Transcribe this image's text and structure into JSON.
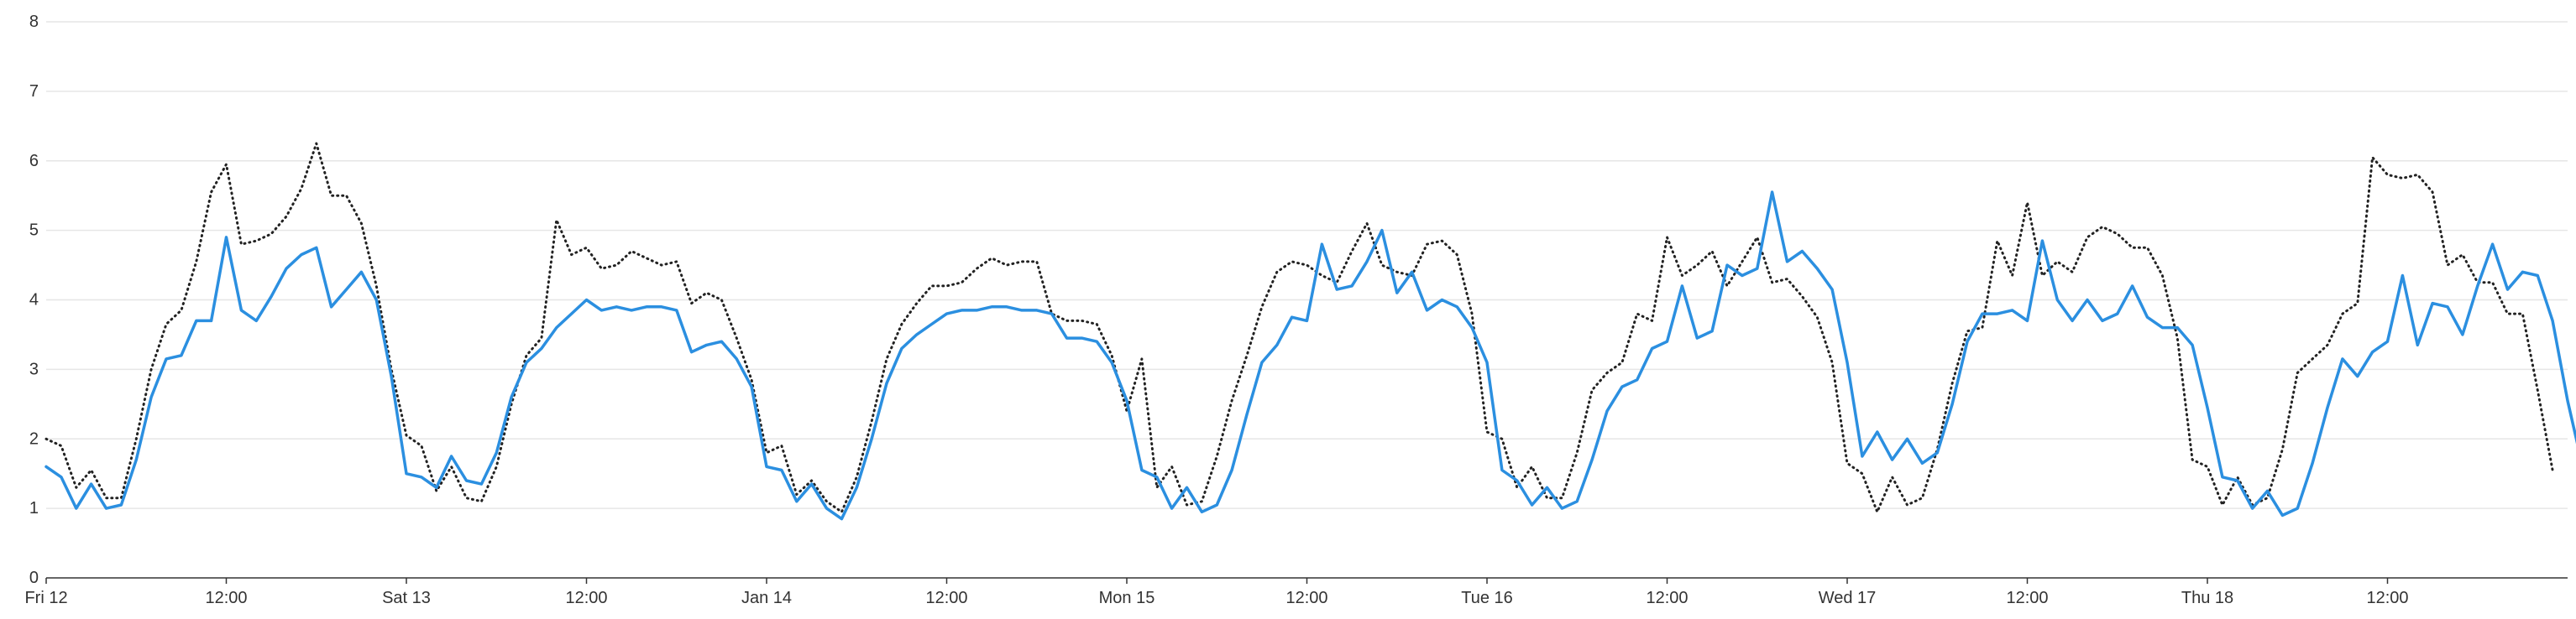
{
  "chart_data": {
    "type": "line",
    "title": "",
    "xlabel": "",
    "ylabel": "",
    "ylim": [
      0,
      8
    ],
    "y_ticks": [
      "0",
      "1",
      "2",
      "3",
      "4",
      "5",
      "6",
      "7",
      "8"
    ],
    "x_ticks": [
      "Fri 12",
      "12:00",
      "Sat 13",
      "12:00",
      "Jan 14",
      "12:00",
      "Mon 15",
      "12:00",
      "Tue 16",
      "12:00",
      "Wed 17",
      "12:00",
      "Thu 18",
      "12:00"
    ],
    "x_range_hours": [
      0,
      168
    ],
    "x_step_hours": 1,
    "grid": "horizontal",
    "legend": "none",
    "series": [
      {
        "style": "solid",
        "color": "#2b8fe0",
        "values": [
          1.6,
          1.45,
          1.0,
          1.35,
          1.0,
          1.05,
          1.7,
          2.6,
          3.15,
          3.2,
          3.7,
          3.7,
          4.9,
          3.85,
          3.7,
          4.05,
          4.45,
          4.65,
          4.75,
          3.9,
          4.15,
          4.4,
          4.0,
          2.9,
          1.5,
          1.45,
          1.3,
          1.75,
          1.4,
          1.35,
          1.8,
          2.6,
          3.1,
          3.3,
          3.6,
          3.8,
          4.0,
          3.85,
          3.9,
          3.85,
          3.9,
          3.9,
          3.85,
          3.25,
          3.35,
          3.4,
          3.15,
          2.75,
          1.6,
          1.55,
          1.1,
          1.35,
          1.0,
          0.85,
          1.3,
          2.0,
          2.8,
          3.3,
          3.5,
          3.65,
          3.8,
          3.85,
          3.85,
          3.9,
          3.9,
          3.85,
          3.85,
          3.8,
          3.45,
          3.45,
          3.4,
          3.1,
          2.55,
          1.55,
          1.45,
          1.0,
          1.3,
          0.95,
          1.05,
          1.55,
          2.35,
          3.1,
          3.35,
          3.75,
          3.7,
          4.8,
          4.15,
          4.2,
          4.55,
          5.0,
          4.1,
          4.4,
          3.85,
          4.0,
          3.9,
          3.6,
          3.1,
          1.55,
          1.4,
          1.05,
          1.3,
          1.0,
          1.1,
          1.7,
          2.4,
          2.75,
          2.85,
          3.3,
          3.4,
          4.2,
          3.45,
          3.55,
          4.5,
          4.35,
          4.45,
          5.55,
          4.55,
          4.7,
          4.45,
          4.15,
          3.1,
          1.75,
          2.1,
          1.7,
          2.0,
          1.65,
          1.8,
          2.5,
          3.4,
          3.8,
          3.8,
          3.85,
          3.7,
          4.85,
          4.0,
          3.7,
          4.0,
          3.7,
          3.8,
          4.2,
          3.75,
          3.6,
          3.6,
          3.35,
          2.45,
          1.45,
          1.4,
          1.0,
          1.25,
          0.9,
          1.0,
          1.65,
          2.45,
          3.15,
          2.9,
          3.25,
          3.4,
          4.35,
          3.35,
          3.95,
          3.9,
          3.5,
          4.2,
          4.8,
          4.15,
          4.4,
          4.35,
          3.7,
          2.55,
          1.6
        ]
      },
      {
        "style": "dotted",
        "color": "#222222",
        "values": [
          2.0,
          1.9,
          1.3,
          1.55,
          1.15,
          1.15,
          2.0,
          3.0,
          3.65,
          3.85,
          4.55,
          5.55,
          5.95,
          4.8,
          4.85,
          4.95,
          5.2,
          5.6,
          6.25,
          5.5,
          5.5,
          5.1,
          4.2,
          3.0,
          2.05,
          1.9,
          1.25,
          1.6,
          1.15,
          1.1,
          1.6,
          2.5,
          3.2,
          3.45,
          5.15,
          4.65,
          4.75,
          4.45,
          4.5,
          4.7,
          4.6,
          4.5,
          4.55,
          3.95,
          4.1,
          4.0,
          3.45,
          2.85,
          1.8,
          1.9,
          1.2,
          1.4,
          1.1,
          0.95,
          1.45,
          2.25,
          3.15,
          3.65,
          3.95,
          4.2,
          4.2,
          4.25,
          4.45,
          4.6,
          4.5,
          4.55,
          4.55,
          3.8,
          3.7,
          3.7,
          3.65,
          3.2,
          2.4,
          3.15,
          1.3,
          1.6,
          1.05,
          1.1,
          1.75,
          2.55,
          3.2,
          3.9,
          4.4,
          4.55,
          4.5,
          4.35,
          4.25,
          4.7,
          5.1,
          4.5,
          4.4,
          4.35,
          4.8,
          4.85,
          4.65,
          3.8,
          2.1,
          2.0,
          1.3,
          1.6,
          1.15,
          1.15,
          1.8,
          2.7,
          2.95,
          3.1,
          3.8,
          3.7,
          4.9,
          4.35,
          4.5,
          4.7,
          4.2,
          4.55,
          4.9,
          4.25,
          4.3,
          4.05,
          3.75,
          3.1,
          1.65,
          1.5,
          0.95,
          1.45,
          1.05,
          1.15,
          1.85,
          2.8,
          3.55,
          3.6,
          4.85,
          4.35,
          5.4,
          4.35,
          4.55,
          4.4,
          4.9,
          5.05,
          4.95,
          4.75,
          4.75,
          4.35,
          3.45,
          1.7,
          1.6,
          1.05,
          1.45,
          1.05,
          1.15,
          1.85,
          2.95,
          3.15,
          3.35,
          3.8,
          3.95,
          6.05,
          5.8,
          5.75,
          5.8,
          5.55,
          4.5,
          4.65,
          4.25,
          4.25,
          3.8,
          3.8,
          2.7,
          1.55
        ]
      }
    ]
  }
}
